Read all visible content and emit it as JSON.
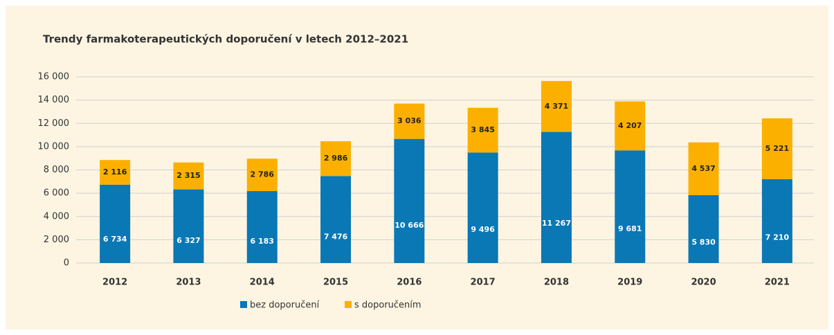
{
  "chart_data": {
    "type": "stacked_bar",
    "title": "Trendy farmakoterapeutických doporučení v letech 2012–2021",
    "categories": [
      "2012",
      "2013",
      "2014",
      "2015",
      "2016",
      "2017",
      "2018",
      "2019",
      "2020",
      "2021"
    ],
    "series": [
      {
        "name": "bez doporučení",
        "color": "#0a78b4",
        "values": [
          6734,
          6327,
          6183,
          7476,
          10666,
          9496,
          11267,
          9681,
          5830,
          7210
        ],
        "value_labels": [
          "6 734",
          "6 327",
          "6 183",
          "7 476",
          "10 666",
          "9 496",
          "11 267",
          "9 681",
          "5 830",
          "7 210"
        ]
      },
      {
        "name": "s doporučením",
        "color": "#fbb000",
        "values": [
          2116,
          2315,
          2786,
          2986,
          3036,
          3845,
          4371,
          4207,
          4537,
          5221
        ],
        "value_labels": [
          "2 116",
          "2 315",
          "2 786",
          "2 986",
          "3 036",
          "3 845",
          "4 371",
          "4 207",
          "4 537",
          "5 221"
        ]
      }
    ],
    "ylim": [
      0,
      16000
    ],
    "yticks": [
      0,
      {
        "value": 2000,
        "label": "2 000"
      },
      {
        "value": 4000,
        "label": "4 000"
      },
      {
        "value": 6000,
        "label": "6 000"
      },
      {
        "value": 8000,
        "label": "8 000"
      },
      {
        "value": 10000,
        "label": "10 000"
      },
      {
        "value": 12000,
        "label": "12 000"
      },
      {
        "value": 14000,
        "label": "14 000"
      },
      {
        "value": 16000,
        "label": "16 000"
      }
    ],
    "grid": true
  }
}
